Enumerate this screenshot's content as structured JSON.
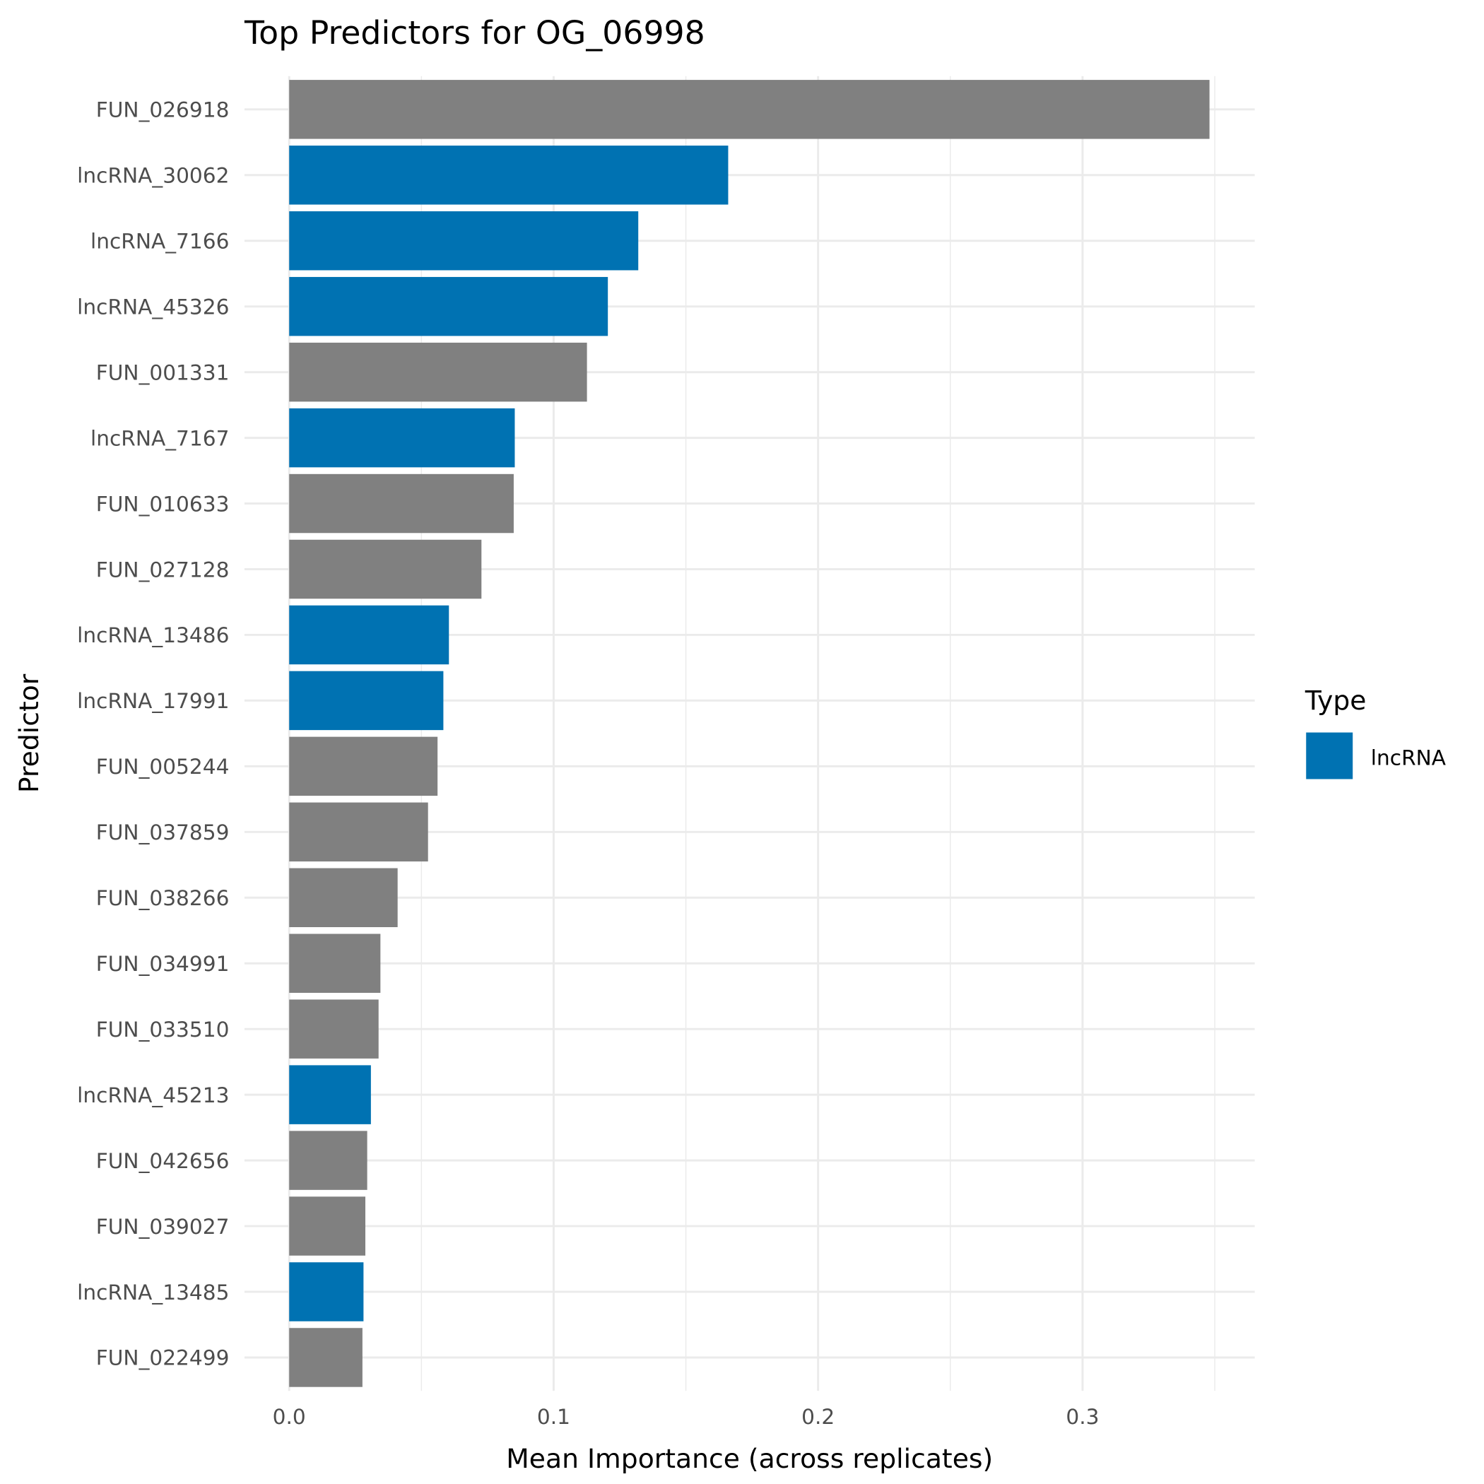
{
  "chart_data": {
    "type": "bar",
    "orientation": "horizontal",
    "title": "Top Predictors for OG_06998",
    "xlabel": "Mean Importance (across replicates)",
    "ylabel": "Predictor",
    "xlim": [
      0,
      0.365
    ],
    "xticks": [
      "0.0",
      "0.1",
      "0.2",
      "0.3"
    ],
    "xtick_values": [
      0,
      0.1,
      0.2,
      0.3
    ],
    "grid": true,
    "legend": {
      "title": "Type",
      "placement": "right",
      "entries": [
        {
          "label": "lncRNA",
          "color": "#0072B2"
        }
      ]
    },
    "colors": {
      "lncRNA": "#0072B2",
      "other": "#808080"
    },
    "categories": [
      "FUN_026918",
      "lncRNA_30062",
      "lncRNA_7166",
      "lncRNA_45326",
      "FUN_001331",
      "lncRNA_7167",
      "FUN_010633",
      "FUN_027128",
      "lncRNA_13486",
      "lncRNA_17991",
      "FUN_005244",
      "FUN_037859",
      "FUN_038266",
      "FUN_034991",
      "FUN_033510",
      "lncRNA_45213",
      "FUN_042656",
      "FUN_039027",
      "lncRNA_13485",
      "FUN_022499"
    ],
    "values": [
      0.348,
      0.166,
      0.132,
      0.1205,
      0.1126,
      0.0853,
      0.0849,
      0.0727,
      0.0604,
      0.0583,
      0.0561,
      0.0525,
      0.041,
      0.0345,
      0.0338,
      0.0309,
      0.0295,
      0.0288,
      0.0281,
      0.0277
    ],
    "types": [
      "other",
      "lncRNA",
      "lncRNA",
      "lncRNA",
      "other",
      "lncRNA",
      "other",
      "other",
      "lncRNA",
      "lncRNA",
      "other",
      "other",
      "other",
      "other",
      "other",
      "lncRNA",
      "other",
      "other",
      "lncRNA",
      "other"
    ]
  }
}
